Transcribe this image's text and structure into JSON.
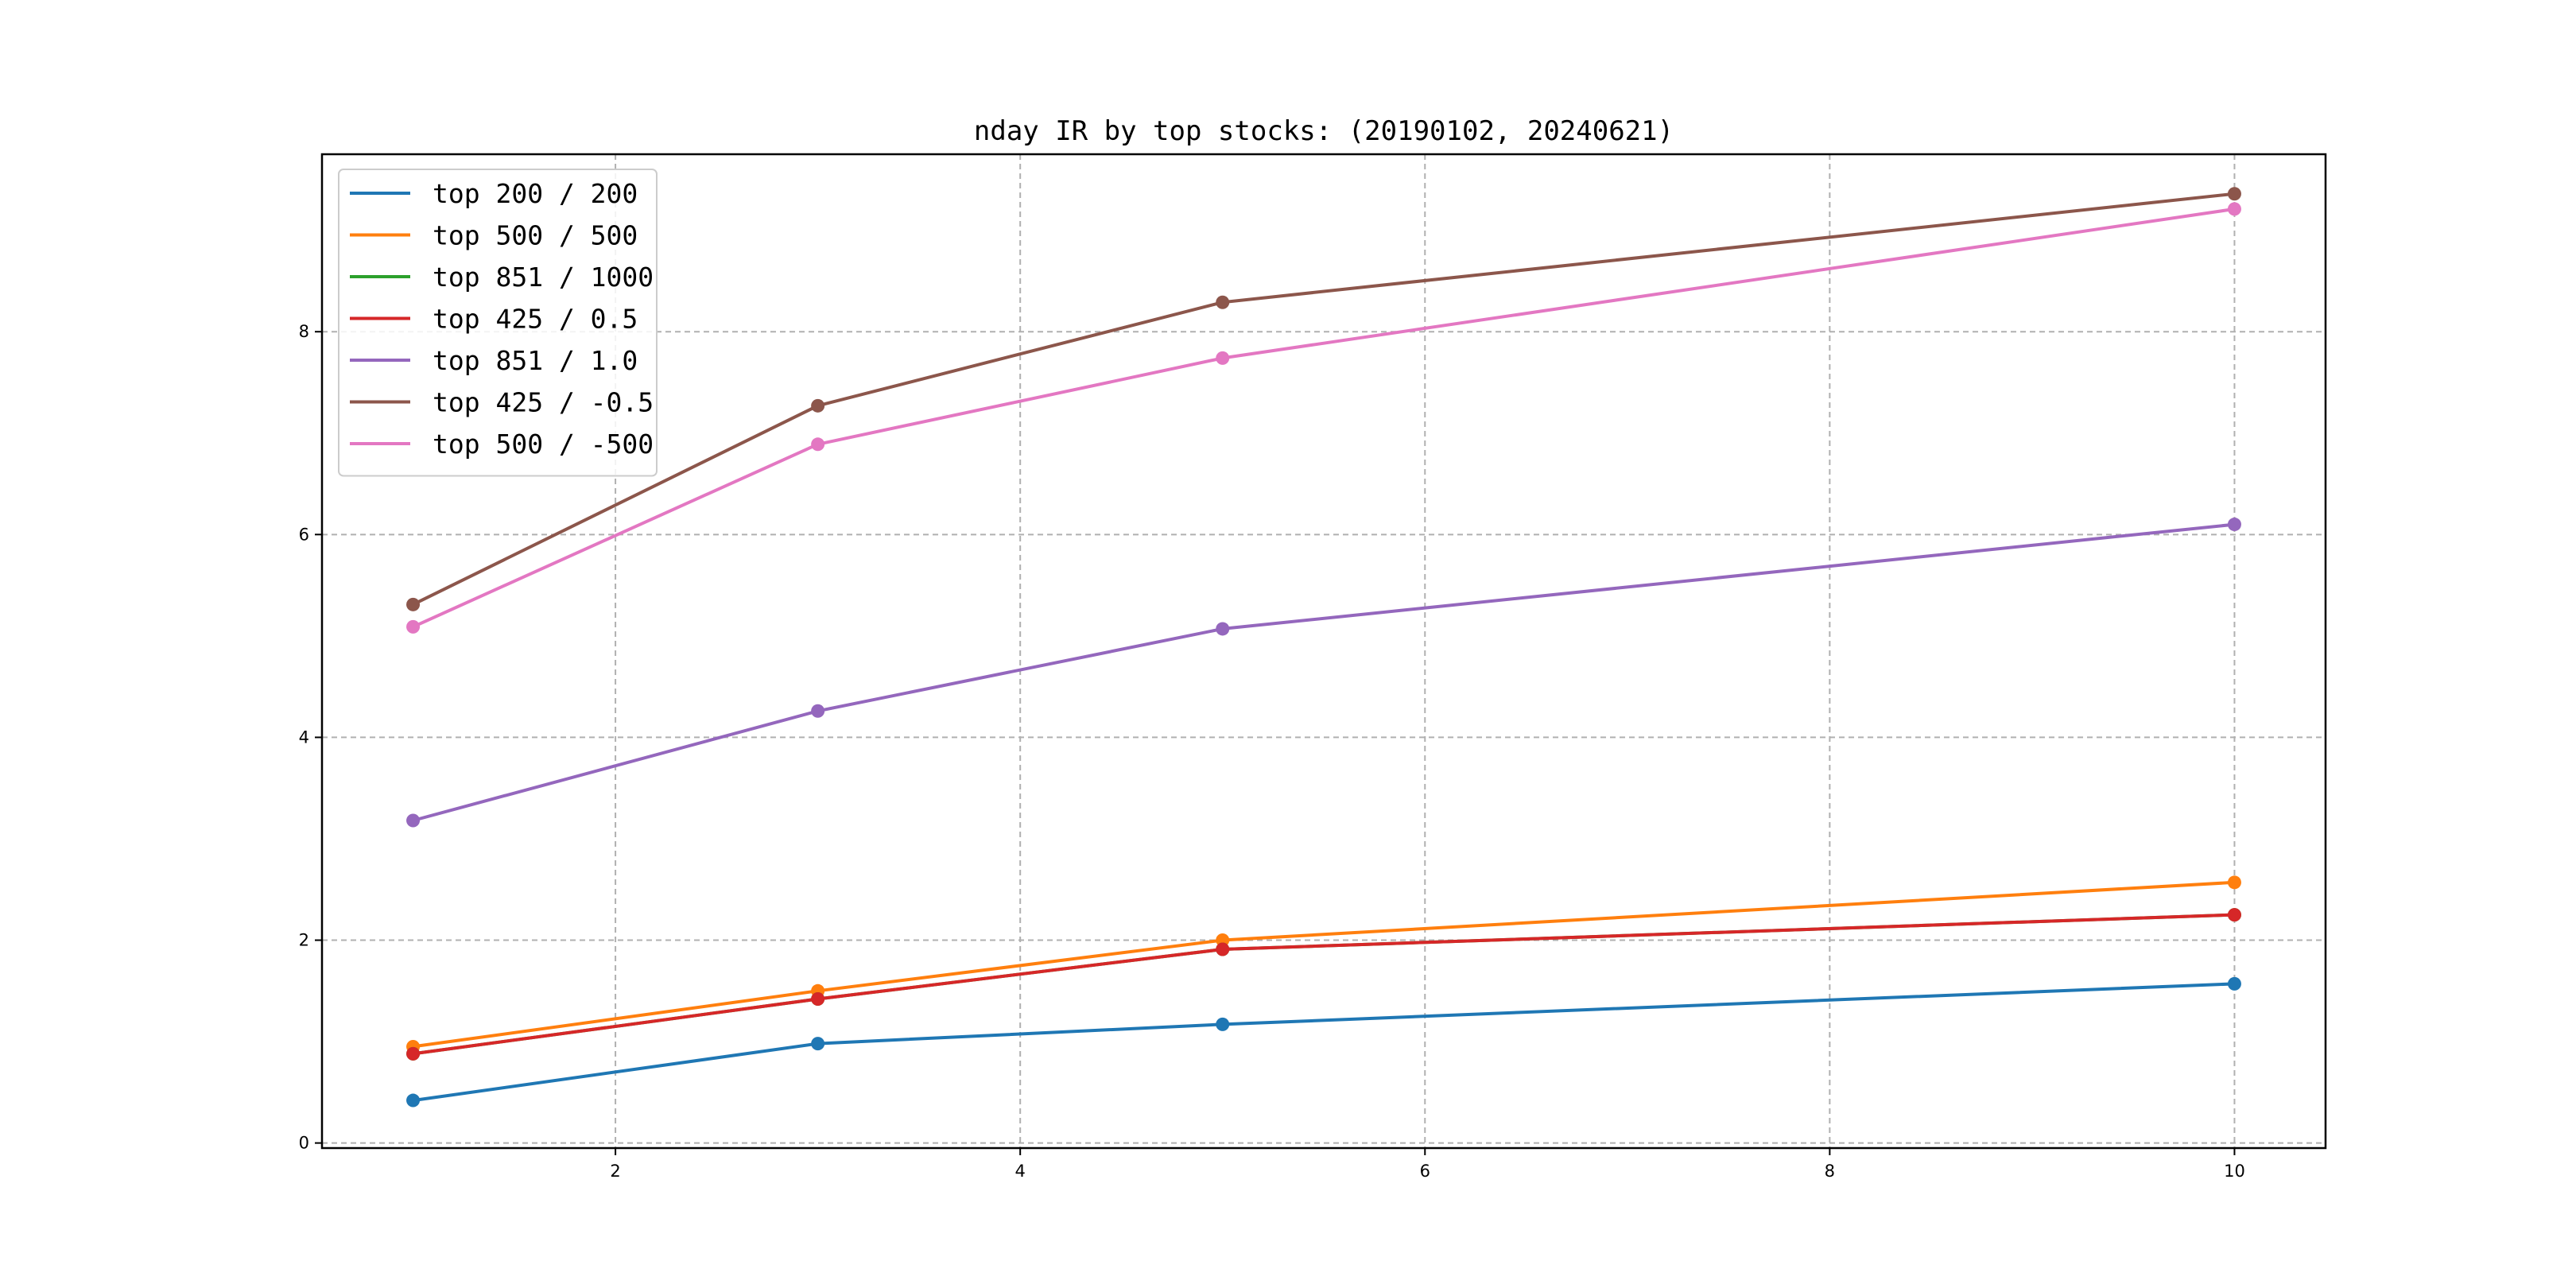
{
  "chart_data": {
    "type": "line",
    "title": "nday IR by top stocks: (20190102, 20240621)",
    "xlabel": "",
    "ylabel": "",
    "x": [
      1,
      3,
      5,
      10
    ],
    "xlim": [
      0.55,
      10.45
    ],
    "ylim": [
      -0.05,
      9.75
    ],
    "xticks": [
      2,
      4,
      6,
      8,
      10
    ],
    "yticks": [
      0,
      2,
      4,
      6,
      8
    ],
    "grid": true,
    "legend_position": "upper-left",
    "markers": true,
    "series": [
      {
        "name": "top 200 / 200",
        "color": "#1f77b4",
        "values": [
          0.42,
          0.98,
          1.17,
          1.57
        ]
      },
      {
        "name": "top 500 / 500",
        "color": "#ff7f0e",
        "values": [
          0.95,
          1.5,
          2.0,
          2.57
        ]
      },
      {
        "name": "top 851 / 1000",
        "color": "#2ca02c",
        "values": [
          0.88,
          1.42,
          1.91,
          2.25
        ]
      },
      {
        "name": "top 425 / 0.5",
        "color": "#d62728",
        "values": [
          0.88,
          1.42,
          1.91,
          2.25
        ]
      },
      {
        "name": "top 851 / 1.0",
        "color": "#9467bd",
        "values": [
          3.18,
          4.26,
          5.07,
          6.1
        ]
      },
      {
        "name": "top 425 / -0.5",
        "color": "#8c564b",
        "values": [
          5.31,
          7.27,
          8.29,
          9.36
        ]
      },
      {
        "name": "top 500 / -500",
        "color": "#e377c2",
        "values": [
          5.09,
          6.89,
          7.74,
          9.21
        ]
      }
    ]
  }
}
